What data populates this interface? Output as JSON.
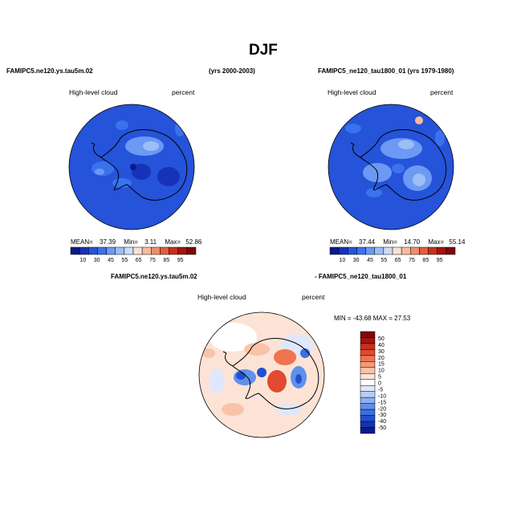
{
  "figure": {
    "title": "DJF"
  },
  "panel_left": {
    "case_label": "FAMIPC5.ne120.ys.tau5m.02",
    "years": "(yrs 2000-2003)",
    "field": "High-level cloud",
    "units": "percent",
    "stats": {
      "mean_label": "MEAN=",
      "mean": "37.39",
      "min_label": "Min=",
      "min": "3.11",
      "max_label": "Max=",
      "max": "52.86"
    }
  },
  "panel_right": {
    "case_label": "FAMIPC5_ne120_tau1800_01 (yrs 1979-1980)",
    "field": "High-level cloud",
    "units": "percent",
    "stats": {
      "mean_label": "MEAN=",
      "mean": "37.44",
      "min_label": "Min=",
      "min": "14.70",
      "max_label": "Max=",
      "max": "55.14"
    }
  },
  "panel_diff": {
    "case_a": "FAMIPC5.ne120.ys.tau5m.02",
    "case_b": "- FAMIPC5_ne120_tau1800_01",
    "field": "High-level cloud",
    "units": "percent",
    "stats": "MIN = -43.68  MAX =  27.53"
  },
  "colorbar_main": {
    "labels": [
      "10",
      "30",
      "45",
      "55",
      "65",
      "75",
      "85",
      "95"
    ],
    "colors": [
      "#0a1a8c",
      "#1633b8",
      "#2553d9",
      "#3a72ee",
      "#6b99f4",
      "#9dbdf7",
      "#cddcf9",
      "#fbe0d2",
      "#f7bba0",
      "#f08d6c",
      "#e35d3e",
      "#c8301c",
      "#a31410",
      "#7d0a08"
    ]
  },
  "colorbar_diff": {
    "labels": [
      "50",
      "40",
      "30",
      "20",
      "15",
      "10",
      "5",
      "0",
      "-5",
      "-10",
      "-15",
      "-20",
      "-30",
      "-40",
      "-50"
    ],
    "colors": [
      "#7d0a08",
      "#a31410",
      "#c8301c",
      "#e04a2e",
      "#ef744f",
      "#f59a76",
      "#f9c3a8",
      "#fde3d5",
      "#ffffff",
      "#dfe8fa",
      "#b8cdf6",
      "#8cb0f2",
      "#6090ec",
      "#3a6fe2",
      "#2050d0",
      "#1433b0",
      "#0a1a8c"
    ]
  }
}
